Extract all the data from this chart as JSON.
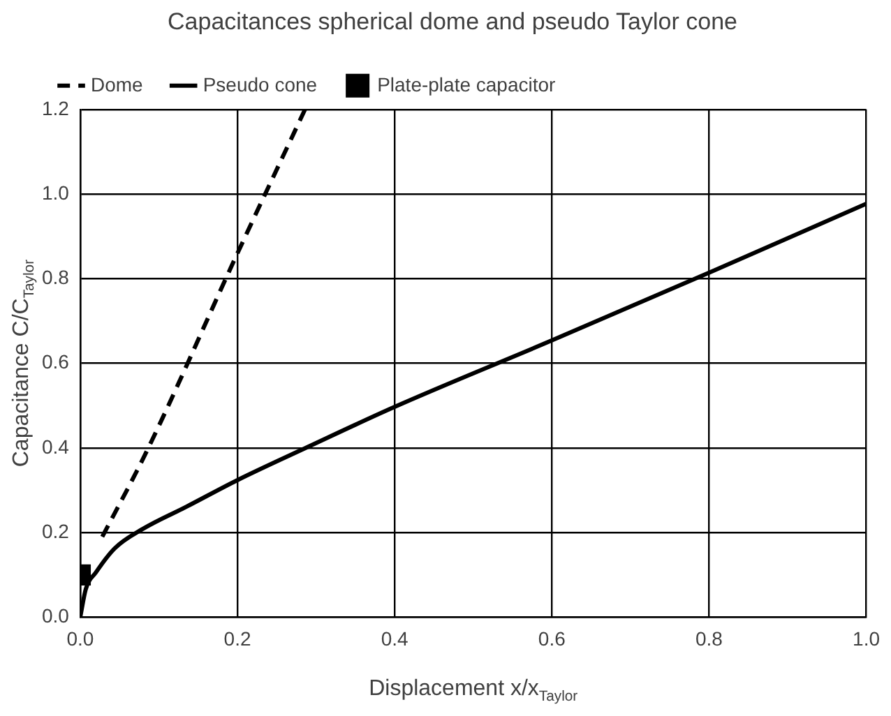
{
  "chart_data": {
    "type": "line",
    "title": "Capacitances spherical dome and pseudo Taylor cone",
    "xlabel": "Displacement x/x$_{Taylor}$",
    "ylabel": "Capacitance C/C$_{Taylor}$",
    "xlim": [
      0,
      1
    ],
    "ylim": [
      0,
      1.2
    ],
    "xticks": [
      {
        "value": 0,
        "label": "0.0"
      },
      0.2,
      0.4,
      0.6,
      0.8,
      {
        "value": 1,
        "label": "1.0"
      }
    ],
    "yticks": [
      {
        "value": 0,
        "label": "0.0"
      },
      0.2,
      0.4,
      0.6,
      0.8,
      {
        "value": 1,
        "label": "1.0"
      },
      1.2
    ],
    "grid": true,
    "legend": "top",
    "marker": "none",
    "series": [
      {
        "name": "Dome",
        "color": "#000000",
        "line_style": "dashed",
        "x": [
          0.028,
          0.084,
          0.2,
          0.286
        ],
        "values": [
          0.19,
          0.39,
          0.86,
          1.2
        ]
      },
      {
        "name": "Pseudo cone",
        "color": "#000000",
        "line_style": "solid",
        "x": [
          0,
          0.007,
          0.02,
          0.044,
          0.08,
          0.135,
          0.2,
          0.288,
          0.4,
          0.6,
          0.8,
          1.0
        ],
        "values": [
          0,
          0.066,
          0.106,
          0.163,
          0.209,
          0.261,
          0.324,
          0.401,
          0.497,
          0.654,
          0.814,
          0.977
        ]
      },
      {
        "name": "Plate-plate capacitor",
        "type": "scatter",
        "marker": "square",
        "color": "#000000",
        "x": [
          0
        ],
        "values": [
          0.1
        ]
      }
    ]
  }
}
